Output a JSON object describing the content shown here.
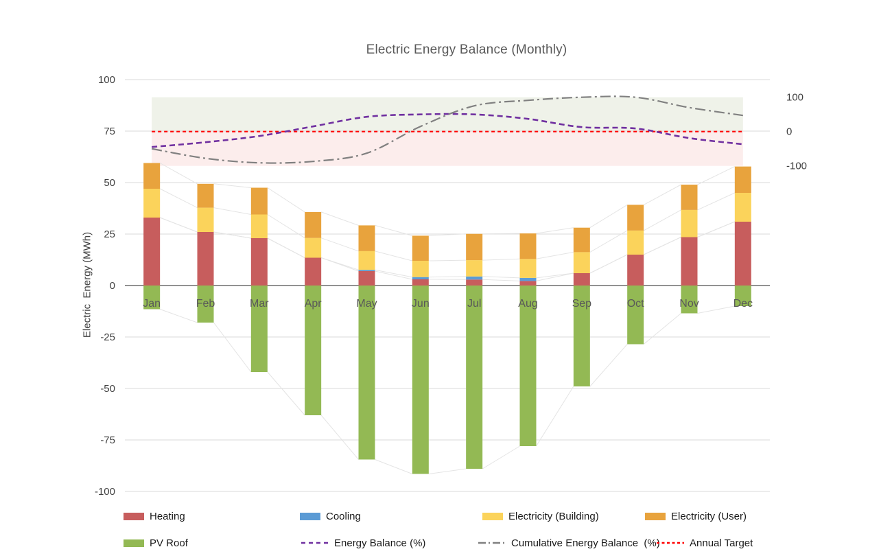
{
  "title": "Electric Energy Balance (Monthly)",
  "y_axis_title": "Electric  Energy (MWh)",
  "colors": {
    "heating": "#C75D5D",
    "cooling": "#5B9BD5",
    "electricity_building": "#FBD35B",
    "electricity_user": "#E8A33D",
    "pv_roof": "#93B954",
    "energy_balance": "#7030A0",
    "cumulative": "#808080",
    "annual_target": "#FF0000",
    "band_positive": "#EFF2E9",
    "band_negative": "#FCEDEC",
    "gridline": "#D9D9D9",
    "zero_line": "#6F6F6F",
    "connector_line": "#E4E4E4",
    "tick_text": "#404040",
    "month_text": "#595959"
  },
  "chart_data": {
    "type": "bar",
    "subtype": "stacked-bars-with-percentage-lines",
    "title": "Electric Energy Balance (Monthly)",
    "categories": [
      "Jan",
      "Feb",
      "Mar",
      "Apr",
      "May",
      "Jun",
      "Jul",
      "Aug",
      "Sep",
      "Oct",
      "Nov",
      "Dec"
    ],
    "series": [
      {
        "id": "heating",
        "name": "Heating",
        "type": "bar",
        "axis": "left",
        "color_key": "heating",
        "values": [
          33,
          26,
          23,
          13.5,
          7,
          3,
          2.9,
          2.2,
          6,
          15,
          23.5,
          31
        ]
      },
      {
        "id": "cooling",
        "name": "Cooling",
        "type": "bar",
        "axis": "left",
        "color_key": "cooling",
        "values": [
          0,
          0,
          0,
          0,
          0.6,
          1.1,
          1.5,
          1.5,
          0,
          0,
          0,
          0
        ]
      },
      {
        "id": "electricity-building",
        "name": "Electricity (Building)",
        "type": "bar",
        "axis": "left",
        "color_key": "electricity_building",
        "values": [
          14,
          11.8,
          11.5,
          9.6,
          9.1,
          7.9,
          7.9,
          9.2,
          10.2,
          11.7,
          13.2,
          14
        ]
      },
      {
        "id": "electricity-user",
        "name": "Electricity (User)",
        "type": "bar",
        "axis": "left",
        "color_key": "electricity_user",
        "values": [
          12.5,
          11.6,
          13,
          12.6,
          12.5,
          12.2,
          12.8,
          12.4,
          11.9,
          12.5,
          12.3,
          12.8
        ]
      },
      {
        "id": "pv-roof",
        "name": "PV Roof",
        "type": "bar",
        "axis": "left",
        "color_key": "pv_roof",
        "values": [
          -11.5,
          -18,
          -42,
          -63,
          -84.5,
          -91.5,
          -89,
          -78,
          -49,
          -28.5,
          -13.5,
          -10
        ]
      },
      {
        "id": "energy-balance",
        "name": "Energy Balance (%)",
        "type": "line",
        "style": "dashed",
        "axis": "right",
        "color_key": "energy_balance",
        "values": [
          -45,
          -31,
          -13,
          15,
          43,
          50,
          50,
          37,
          13,
          9,
          -19,
          -37
        ]
      },
      {
        "id": "cumulative-energy-balance",
        "name": "Cumulative Energy Balance  (%)",
        "type": "line",
        "style": "dashdot",
        "axis": "right",
        "color_key": "cumulative",
        "values": [
          -50,
          -78,
          -91,
          -87,
          -63,
          15,
          75,
          91,
          100,
          100,
          70,
          47
        ]
      },
      {
        "id": "annual-target",
        "name": "Annual Target",
        "type": "line",
        "style": "dotted",
        "axis": "right",
        "color_key": "annual_target",
        "values": [
          0,
          0,
          0,
          0,
          0,
          0,
          0,
          0,
          0,
          0,
          0,
          0
        ]
      }
    ],
    "left_axis": {
      "title": "Electric  Energy (MWh)",
      "min": -100,
      "max": 100,
      "ticks": [
        100,
        75,
        50,
        25,
        0,
        -25,
        -50,
        -75,
        -100
      ]
    },
    "right_axis": {
      "min": -100,
      "max": 100,
      "ticks": [
        100,
        0,
        -100
      ]
    },
    "bands": [
      {
        "from": 0,
        "to": 100,
        "color_key": "band_positive"
      },
      {
        "from": -100,
        "to": 0,
        "color_key": "band_negative"
      }
    ],
    "grid": true,
    "legend_position": "bottom",
    "legend": {
      "rows": [
        [
          {
            "id": "heating",
            "label": "Heating",
            "swatch": "bar",
            "color_key": "heating"
          },
          {
            "id": "cooling",
            "label": "Cooling",
            "swatch": "bar",
            "color_key": "cooling"
          },
          {
            "id": "electricity-building",
            "label": "Electricity (Building)",
            "swatch": "bar",
            "color_key": "electricity_building"
          },
          {
            "id": "electricity-user",
            "label": "Electricity (User)",
            "swatch": "bar",
            "color_key": "electricity_user"
          }
        ],
        [
          {
            "id": "pv-roof",
            "label": "PV Roof",
            "swatch": "bar",
            "color_key": "pv_roof"
          },
          {
            "id": "energy-balance",
            "label": "Energy Balance (%)",
            "swatch": "dashed",
            "color_key": "energy_balance"
          },
          {
            "id": "cumulative-energy-balance",
            "label": "Cumulative Energy Balance  (%)",
            "swatch": "dashdot",
            "color_key": "cumulative"
          },
          {
            "id": "annual-target",
            "label": "Annual Target",
            "swatch": "dotted",
            "color_key": "annual_target"
          }
        ]
      ]
    }
  }
}
